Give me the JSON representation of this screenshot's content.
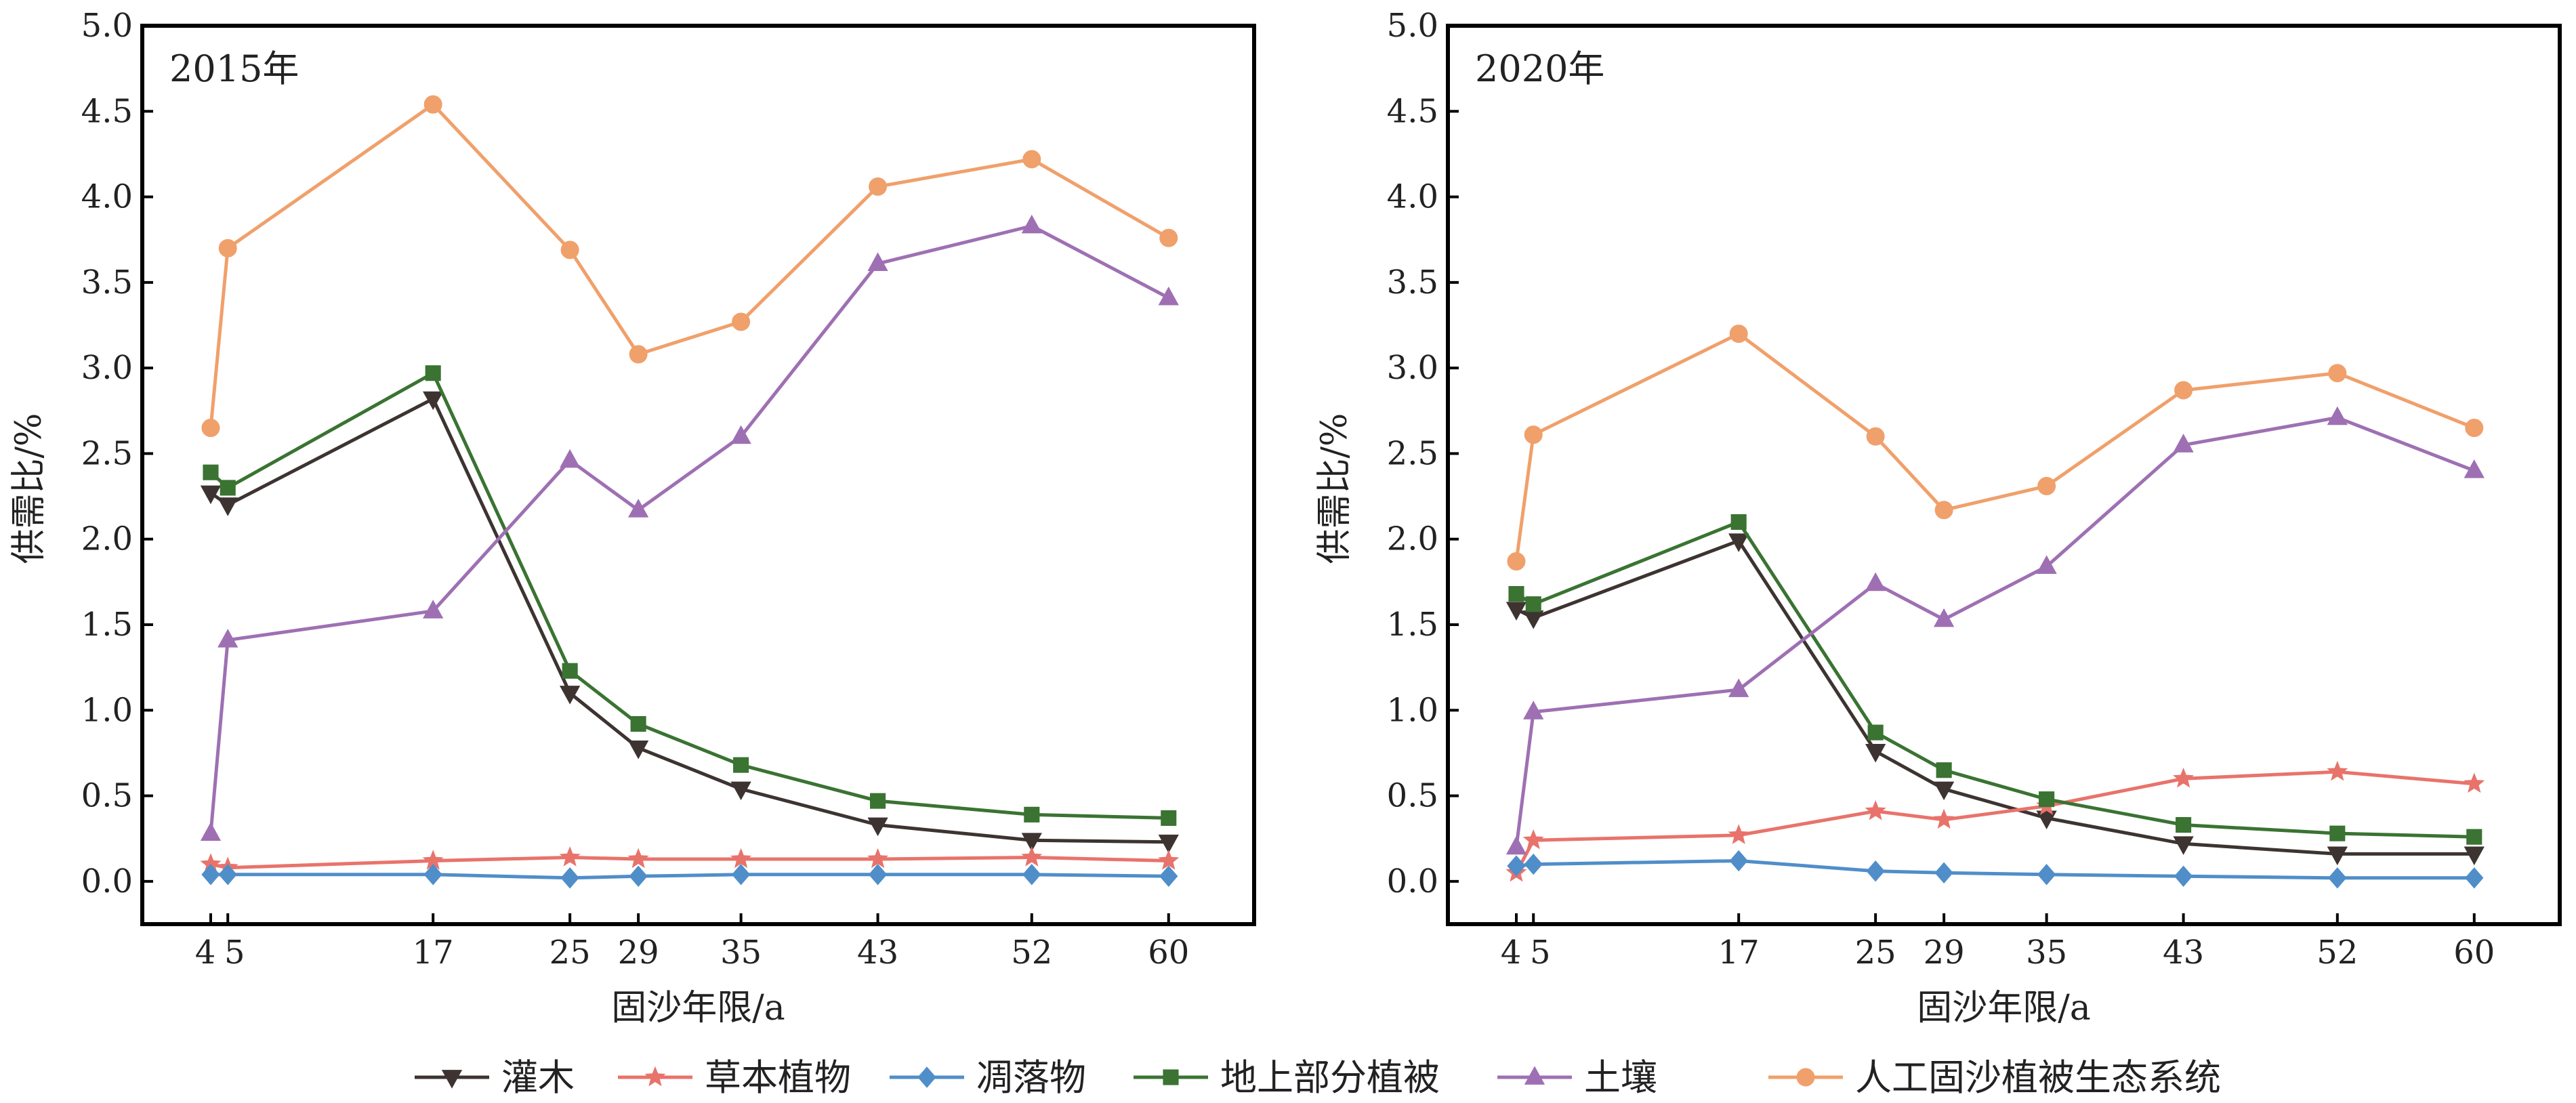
{
  "chart_data": {
    "type": "line",
    "x_ticks": [
      4,
      5,
      17,
      25,
      29,
      35,
      43,
      52,
      60
    ],
    "y_ticks": [
      "0.0",
      "0.5",
      "1.0",
      "1.5",
      "2.0",
      "2.5",
      "3.0",
      "3.5",
      "4.0",
      "4.5",
      "5.0"
    ],
    "xlim": [
      0,
      65
    ],
    "ylim": [
      -0.25,
      5.0
    ],
    "xlabel": "固沙年限/a",
    "ylabel": "供需比/%",
    "legend_position": "bottom",
    "grid": false,
    "series_styles": [
      {
        "name": "灌木",
        "color": "#3d3431",
        "marker": "triangle-down"
      },
      {
        "name": "草本植物",
        "color": "#e8736b",
        "marker": "star"
      },
      {
        "name": "凋落物",
        "color": "#4f8ec9",
        "marker": "diamond"
      },
      {
        "name": "地上部分植被",
        "color": "#3a7332",
        "marker": "square"
      },
      {
        "name": "土壤",
        "color": "#9e70b3",
        "marker": "triangle-up"
      },
      {
        "name": "人工固沙植被生态系统",
        "color": "#f0a06b",
        "marker": "circle"
      }
    ],
    "panels": [
      {
        "title": "2015年",
        "series": [
          {
            "name": "灌木",
            "values": [
              2.27,
              2.2,
              2.82,
              1.1,
              0.78,
              0.54,
              0.33,
              0.24,
              0.23
            ]
          },
          {
            "name": "草本植物",
            "values": [
              0.1,
              0.08,
              0.12,
              0.14,
              0.13,
              0.13,
              0.13,
              0.14,
              0.12
            ]
          },
          {
            "name": "凋落物",
            "values": [
              0.04,
              0.04,
              0.04,
              0.02,
              0.03,
              0.04,
              0.04,
              0.04,
              0.03
            ]
          },
          {
            "name": "地上部分植被",
            "values": [
              2.39,
              2.3,
              2.97,
              1.23,
              0.92,
              0.68,
              0.47,
              0.39,
              0.37
            ]
          },
          {
            "name": "土壤",
            "values": [
              0.28,
              1.41,
              1.58,
              2.46,
              2.17,
              2.6,
              3.61,
              3.83,
              3.41
            ]
          },
          {
            "name": "人工固沙植被生态系统",
            "values": [
              2.65,
              3.7,
              4.54,
              3.69,
              3.08,
              3.27,
              4.06,
              4.22,
              3.76
            ]
          }
        ]
      },
      {
        "title": "2020年",
        "series": [
          {
            "name": "灌木",
            "values": [
              1.59,
              1.54,
              1.99,
              0.76,
              0.54,
              0.37,
              0.22,
              0.16,
              0.16
            ]
          },
          {
            "name": "草本植物",
            "values": [
              0.05,
              0.24,
              0.27,
              0.41,
              0.36,
              0.44,
              0.6,
              0.64,
              0.57
            ]
          },
          {
            "name": "凋落物",
            "values": [
              0.09,
              0.1,
              0.12,
              0.06,
              0.05,
              0.04,
              0.03,
              0.02,
              0.02
            ]
          },
          {
            "name": "地上部分植被",
            "values": [
              1.68,
              1.62,
              2.1,
              0.87,
              0.65,
              0.48,
              0.33,
              0.28,
              0.26
            ]
          },
          {
            "name": "土壤",
            "values": [
              0.2,
              0.99,
              1.12,
              1.74,
              1.53,
              1.84,
              2.55,
              2.71,
              2.4
            ]
          },
          {
            "name": "人工固沙植被生态系统",
            "values": [
              1.87,
              2.61,
              3.2,
              2.6,
              2.17,
              2.31,
              2.87,
              2.97,
              2.65
            ]
          }
        ]
      }
    ]
  }
}
